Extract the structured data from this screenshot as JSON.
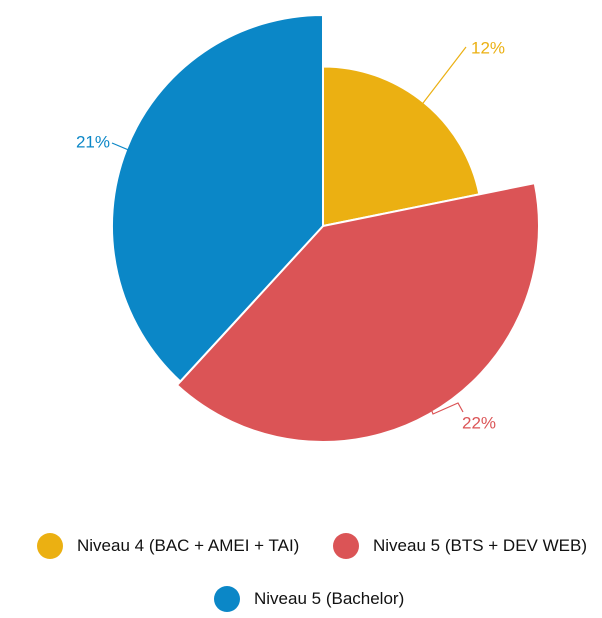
{
  "chart_data": {
    "type": "pie",
    "title": "",
    "categories": [
      "Niveau 4 (BAC + AMEI + TAI)",
      "Niveau 5 (BTS + DEV WEB)",
      "Niveau 5 (Bachelor)"
    ],
    "values": [
      12,
      22,
      21
    ],
    "labels": [
      "12%",
      "22%",
      "21%"
    ],
    "colors": [
      "#EBB012",
      "#DB5456",
      "#0B87C7"
    ],
    "variable_radius": true,
    "start_angle": "top",
    "legend_position": "bottom"
  }
}
